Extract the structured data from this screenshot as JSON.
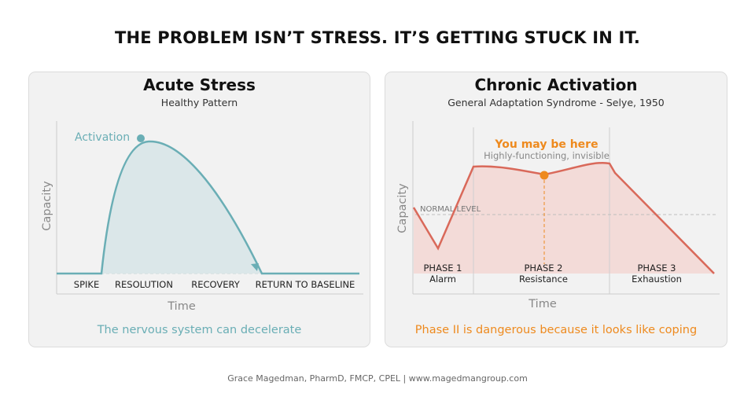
{
  "title": "THE PROBLEM ISN’T STRESS. IT’S GETTING STUCK IN IT.",
  "left_panel": {
    "title": "Acute Stress",
    "subtitle": "Healthy Pattern",
    "y_label": "Capacity",
    "x_label": "Time",
    "peak_label": "Activation",
    "phases": [
      "SPIKE",
      "RESOLUTION",
      "RECOVERY",
      "RETURN TO BASELINE"
    ],
    "caption": "The nervous system can decelerate",
    "color": "#6aaeb5"
  },
  "right_panel": {
    "title": "Chronic Activation",
    "subtitle": "General Adaptation Syndrome - Selye, 1950",
    "y_label": "Capacity",
    "x_label": "Time",
    "normal_level_label": "NORMAL LEVEL",
    "callout_title": "You may be here",
    "callout_sub": "Highly-functioning, invisible",
    "phases": [
      {
        "name": "PHASE 1",
        "desc": "Alarm"
      },
      {
        "name": "PHASE 2",
        "desc": "Resistance"
      },
      {
        "name": "PHASE 3",
        "desc": "Exhaustion"
      }
    ],
    "caption": "Phase II is dangerous because it looks like coping",
    "line_color": "#d9695a",
    "accent_color": "#ee8a1e"
  },
  "footer": "Grace Magedman, PharmD, FMCP, CPEL  |  www.magedmangroup.com"
}
